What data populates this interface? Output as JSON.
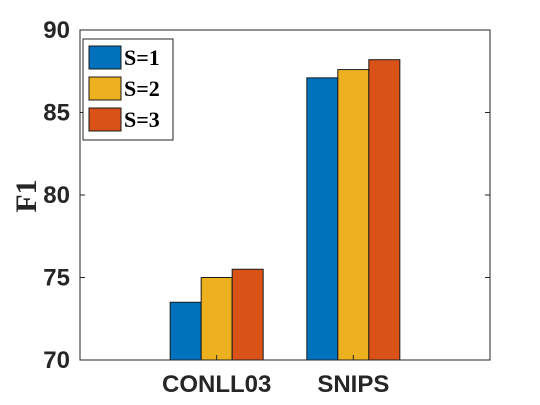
{
  "chart_data": {
    "type": "bar",
    "categories": [
      "CONLL03",
      "SNIPS"
    ],
    "series": [
      {
        "name": "S=1",
        "values": [
          73.5,
          87.1
        ],
        "color": "#0072BD"
      },
      {
        "name": "S=2",
        "values": [
          75.0,
          87.6
        ],
        "color": "#EDB120"
      },
      {
        "name": "S=3",
        "values": [
          75.5,
          88.2
        ],
        "color": "#D95319"
      }
    ],
    "title": "",
    "xlabel": "",
    "ylabel": "F1",
    "ylim": [
      70,
      90
    ],
    "yticks": [
      70,
      75,
      80,
      85,
      90
    ],
    "grid": false,
    "legend_position": "top-left"
  }
}
